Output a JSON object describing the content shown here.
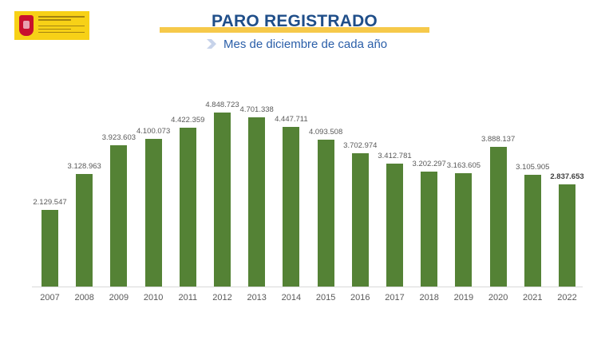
{
  "header": {
    "logo_icon": "spanish-government-coat-of-arms-icon",
    "title": "PARO REGISTRADO",
    "subtitle": "Mes de diciembre de cada año",
    "subtitle_icon": "chevron-right-icon"
  },
  "colors": {
    "bar": "#548235",
    "title": "#1f4e89",
    "subtitle": "#2a5ea8",
    "title_underline": "#f6c94a",
    "logo_bg": "#f7d117"
  },
  "chart_data": {
    "type": "bar",
    "title": "PARO REGISTRADO",
    "subtitle": "Mes de diciembre de cada año",
    "xlabel": "",
    "ylabel": "",
    "grid": false,
    "legend": null,
    "categories": [
      "2007",
      "2008",
      "2009",
      "2010",
      "2011",
      "2012",
      "2013",
      "2014",
      "2015",
      "2016",
      "2017",
      "2018",
      "2019",
      "2020",
      "2021",
      "2022"
    ],
    "values": [
      2129547,
      3128963,
      3923603,
      4100073,
      4422359,
      4848723,
      4701338,
      4447711,
      4093508,
      3702974,
      3412781,
      3202297,
      3163605,
      3888137,
      3105905,
      2837653
    ],
    "value_labels": [
      "2.129.547",
      "3.128.963",
      "3.923.603",
      "4.100.073",
      "4.422.359",
      "4.848.723",
      "4.701.338",
      "4.447.711",
      "4.093.508",
      "3.702.974",
      "3.412.781",
      "3.202.297",
      "3.163.605",
      "3.888.137",
      "3.105.905",
      "2.837.653"
    ],
    "highlighted_label_index": 15,
    "ylim": [
      0,
      5000000
    ]
  }
}
